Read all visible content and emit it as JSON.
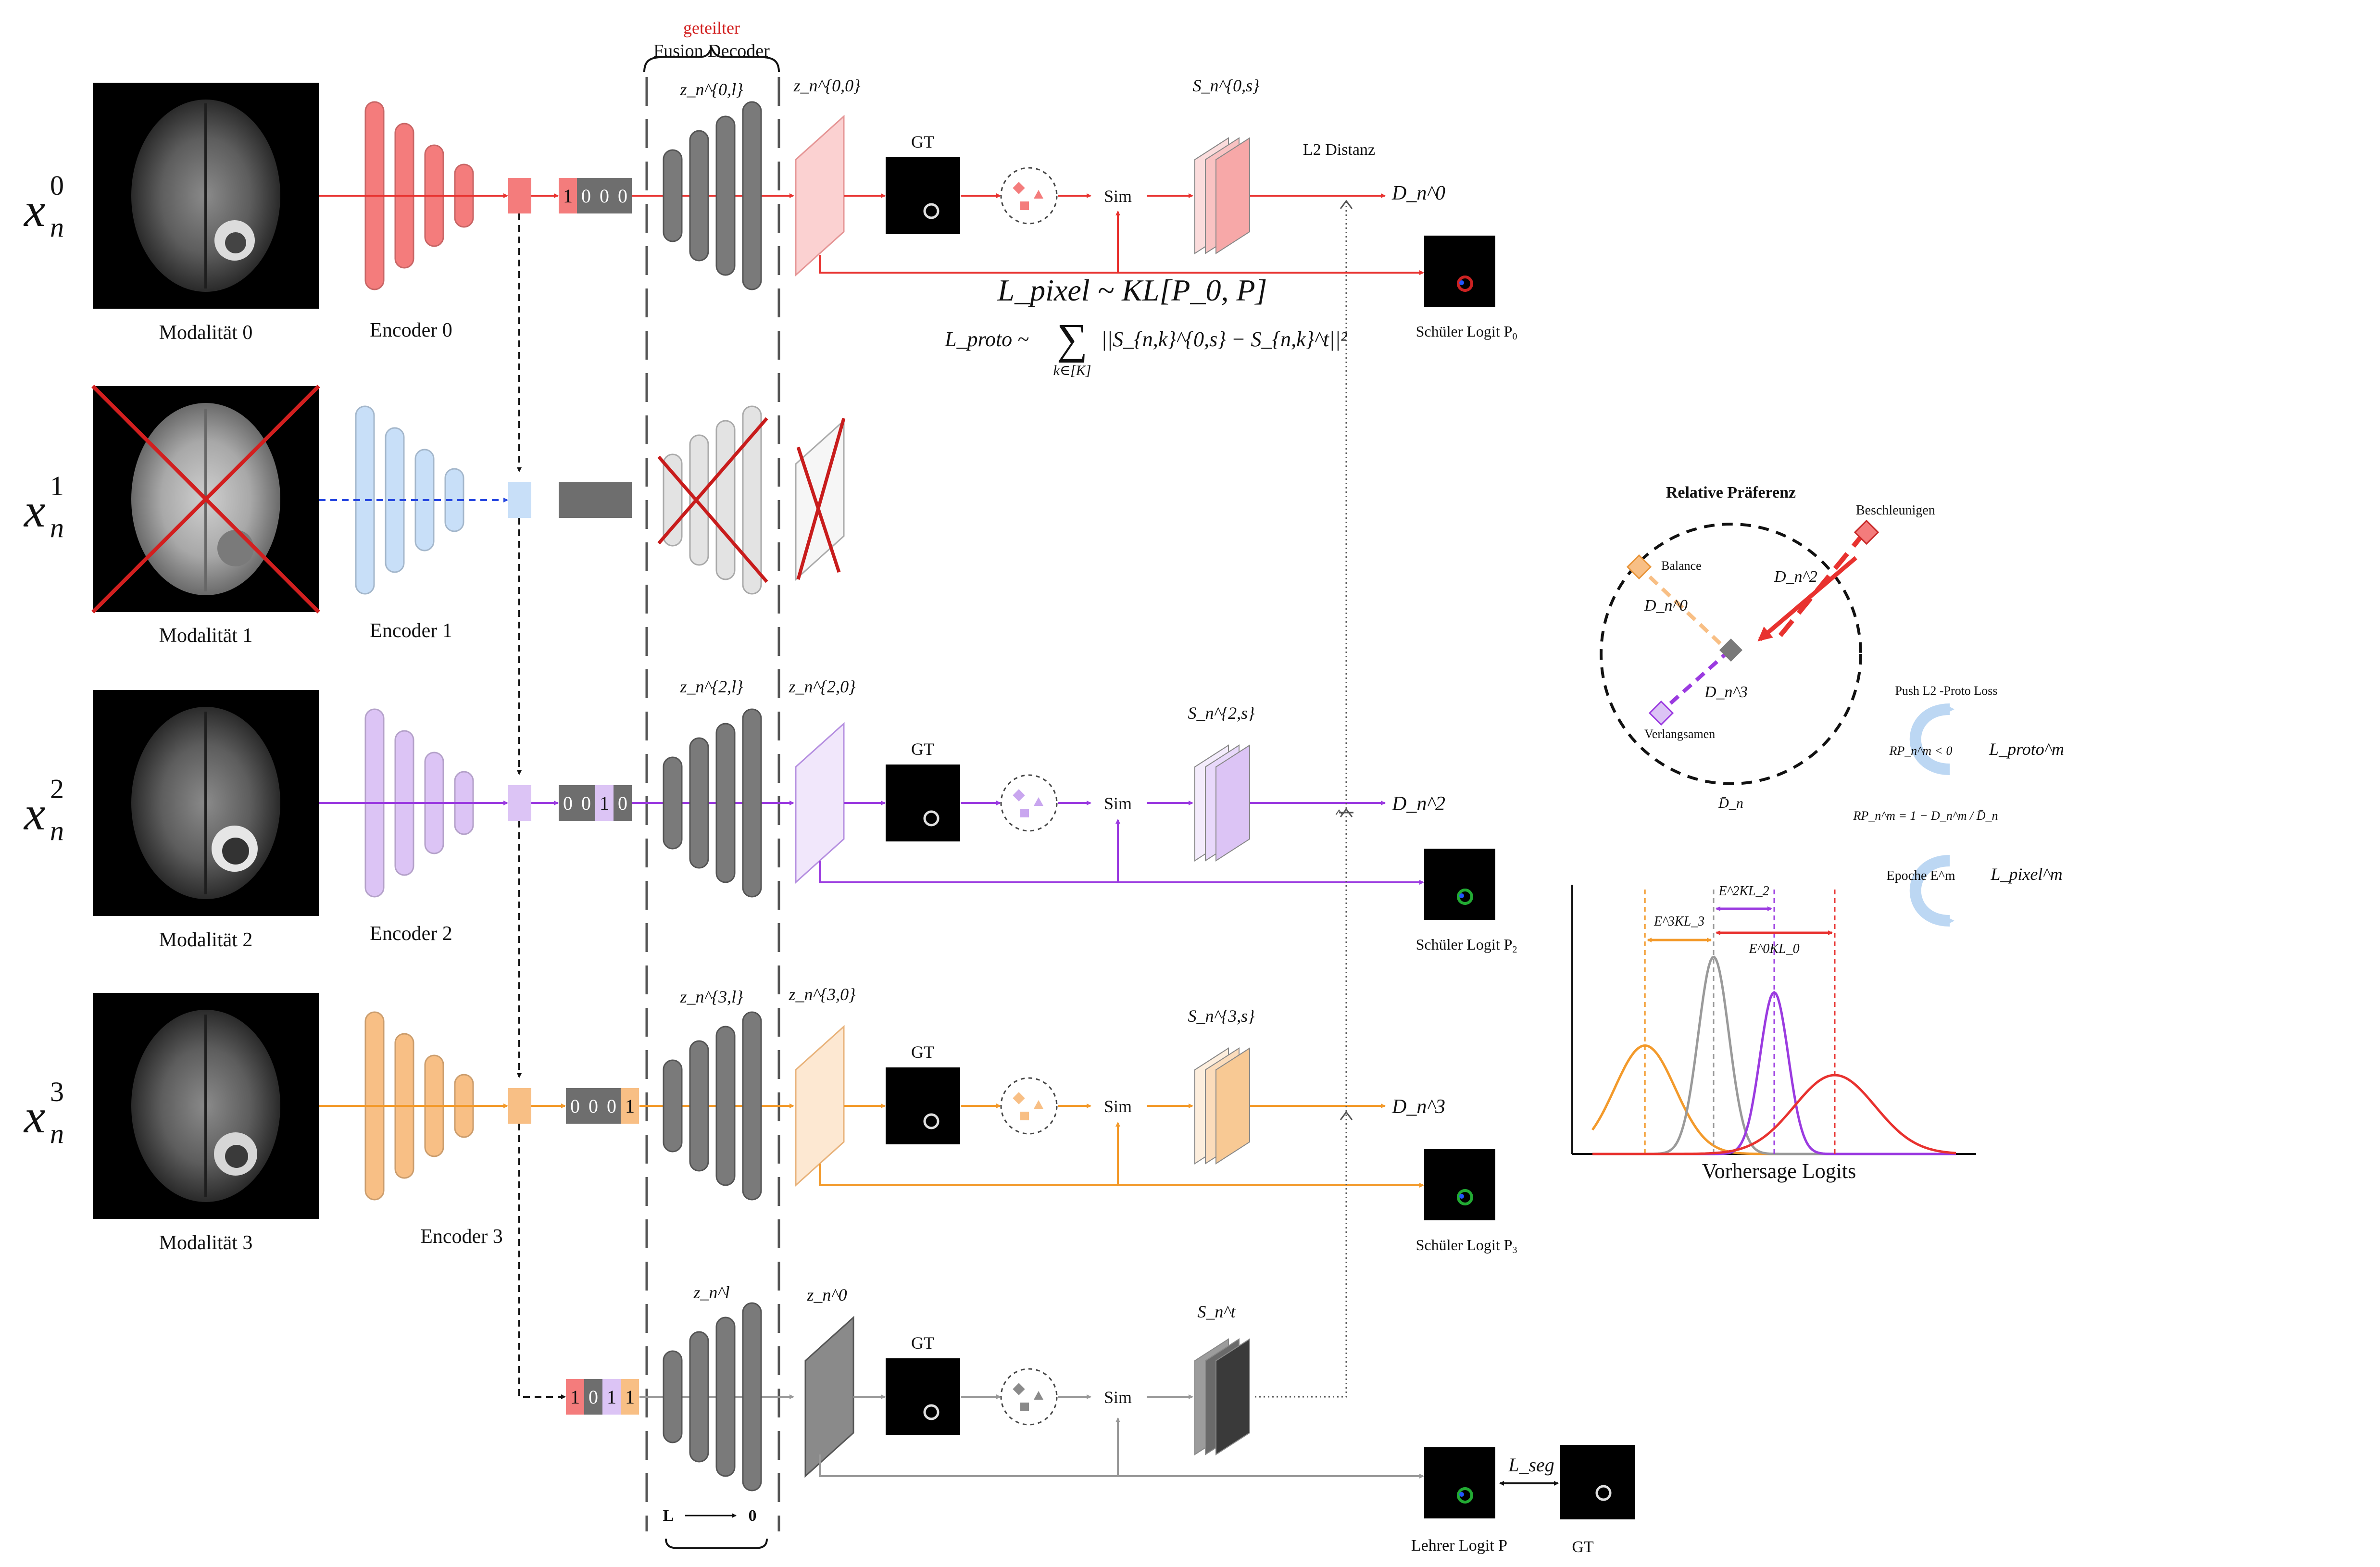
{
  "modalities": [
    {
      "label": "Modalität 0",
      "encoder": "Encoder 0",
      "input": {
        "base": "x",
        "sub": "n",
        "sup": "0"
      },
      "color": "#f47c7c",
      "active": true,
      "mask": [
        "1",
        "0",
        "0",
        "0"
      ]
    },
    {
      "label": "Modalität 1",
      "encoder": "Encoder 1",
      "input": {
        "base": "x",
        "sub": "n",
        "sup": "1"
      },
      "color": "#a9cdf5",
      "active": false,
      "mask": []
    },
    {
      "label": "Modalität 2",
      "encoder": "Encoder 2",
      "input": {
        "base": "x",
        "sub": "n",
        "sup": "2"
      },
      "color": "#c9a6ef",
      "active": true,
      "mask": [
        "0",
        "0",
        "1",
        "0"
      ]
    },
    {
      "label": "Modalität 3",
      "encoder": "Encoder 3",
      "input": {
        "base": "x",
        "sub": "n",
        "sup": "3"
      },
      "color": "#f8bf85",
      "active": true,
      "mask": [
        "0",
        "0",
        "0",
        "1"
      ]
    }
  ],
  "teacher_mask": [
    "1",
    "0",
    "1",
    "1"
  ],
  "decoder": {
    "title_red": "geteilter",
    "title": "Fusion Decoder",
    "axis_left": "L",
    "axis_right": "0"
  },
  "latents": {
    "row0": {
      "z_l": "z_n^{0,l}",
      "z_0": "z_n^{0,0}",
      "s": "S_n^{0,s}",
      "d": "D_n^0"
    },
    "row2": {
      "z_l": "z_n^{2,l}",
      "z_0": "z_n^{2,0}",
      "s": "S_n^{2,s}",
      "d": "D_n^2"
    },
    "row3": {
      "z_l": "z_n^{3,l}",
      "z_0": "z_n^{3,0}",
      "s": "S_n^{3,s}",
      "d": "D_n^3"
    },
    "teacher": {
      "z_l": "z_n^l",
      "z_0": "z_n^0",
      "s": "S_n^t"
    }
  },
  "labels": {
    "gt": "GT",
    "sim": "Sim",
    "l2": "L2 Distanz",
    "student0": "Schüler Logit P",
    "student0_sub": "0",
    "student2": "Schüler Logit P",
    "student2_sub": "2",
    "student3": "Schüler Logit P",
    "student3_sub": "3",
    "teacher": "Lehrer Logit P",
    "gt_bottom": "GT",
    "l_seg": "L_seg"
  },
  "losses": {
    "pixel": "L_pixel ~ KL[P_0, P]",
    "proto_left": "L_proto ~",
    "proto_sum_sub": "k∈[K]",
    "proto_right": "||S_{n,k}^{0,s} − S_{n,k}^t||²"
  },
  "preference": {
    "title": "Relative Präferenz",
    "accelerate": "Beschleunigen",
    "balance": "Balance",
    "slow": "Verlangsamen",
    "d2": "D_n^2",
    "d0": "D_n^0",
    "d3": "D_n^3",
    "dbar": "D̄_n",
    "push": "Push L2 -Proto Loss",
    "rp_lt": "RP_n^m < 0",
    "rp_def": "RP_n^m = 1 − D_n^m / D̄_n",
    "epoch": "Epoche E^m",
    "l_proto": "L_proto^m",
    "l_pixel": "L_pixel^m"
  },
  "logit_chart": {
    "xlabel": "Vorhersage Logits",
    "annotations": [
      "E^3KL_3",
      "E^2KL_2",
      "E^0KL_0"
    ]
  },
  "chart_data": {
    "type": "line",
    "title": "",
    "xlabel": "Vorhersage Logits",
    "ylabel": "",
    "series": [
      {
        "color": "#f39a2b",
        "mean": 0.18,
        "sd": 0.075,
        "peak": 0.55
      },
      {
        "color": "#9a9a9a",
        "mean": 0.35,
        "sd": 0.038,
        "peak": 1.0
      },
      {
        "color": "#9b3be0",
        "mean": 0.5,
        "sd": 0.035,
        "peak": 0.82
      },
      {
        "color": "#e8322f",
        "mean": 0.65,
        "sd": 0.1,
        "peak": 0.4
      }
    ],
    "grid": false,
    "legend": "none"
  }
}
